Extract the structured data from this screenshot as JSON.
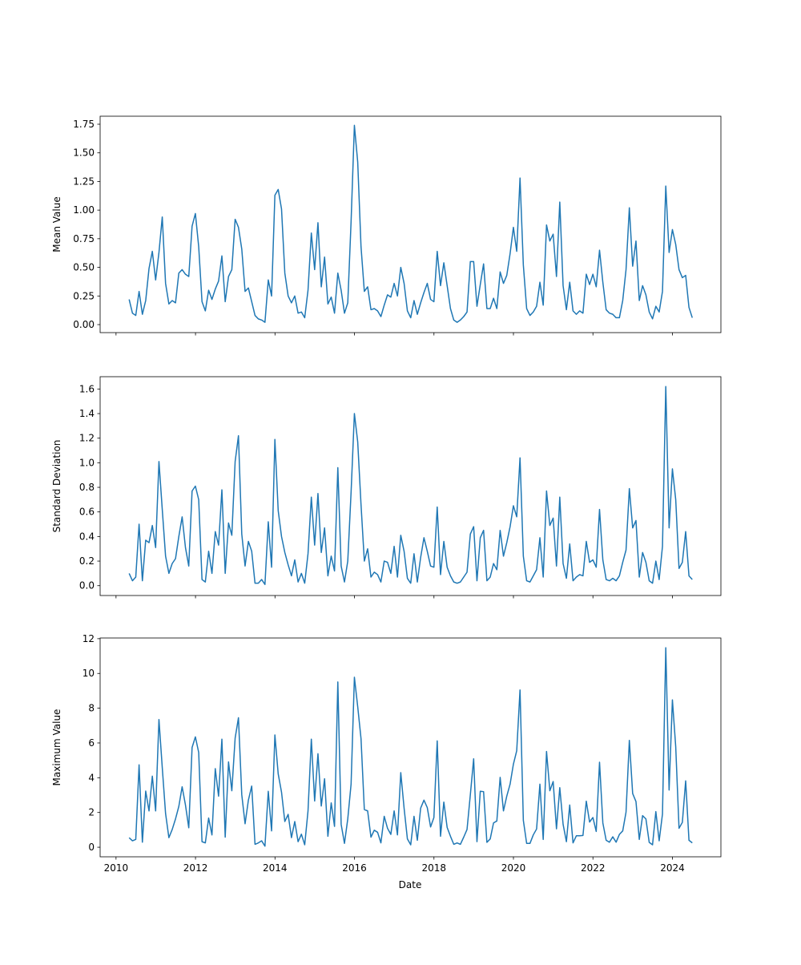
{
  "chart_data": {
    "type": "line",
    "xlabel": "Date",
    "x_start": 2010.33,
    "x_end": 2024.5,
    "x_frequency": "monthly",
    "xlim": [
      2009.6,
      2025.22
    ],
    "xticks": [
      2010,
      2012,
      2014,
      2016,
      2018,
      2020,
      2022,
      2024
    ],
    "xtick_labels": [
      "2010",
      "2012",
      "2014",
      "2016",
      "2018",
      "2020",
      "2022",
      "2024"
    ],
    "line_color": "#1f77b4",
    "grid": false,
    "panels": [
      {
        "ylabel": "Mean Value",
        "ylim": [
          -0.07,
          1.82
        ],
        "yticks": [
          0,
          0.25,
          0.5,
          0.75,
          1.0,
          1.25,
          1.5,
          1.75
        ],
        "ytick_labels": [
          "0.00",
          "0.25",
          "0.50",
          "0.75",
          "1.00",
          "1.25",
          "1.50",
          "1.75"
        ],
        "values": [
          0.22,
          0.1,
          0.08,
          0.29,
          0.09,
          0.21,
          0.49,
          0.64,
          0.39,
          0.63,
          0.94,
          0.36,
          0.18,
          0.21,
          0.19,
          0.45,
          0.48,
          0.44,
          0.42,
          0.86,
          0.97,
          0.68,
          0.2,
          0.12,
          0.3,
          0.22,
          0.31,
          0.38,
          0.6,
          0.2,
          0.42,
          0.48,
          0.92,
          0.85,
          0.66,
          0.29,
          0.32,
          0.2,
          0.08,
          0.05,
          0.04,
          0.02,
          0.39,
          0.25,
          1.13,
          1.18,
          1.01,
          0.45,
          0.25,
          0.19,
          0.25,
          0.1,
          0.11,
          0.06,
          0.3,
          0.8,
          0.48,
          0.89,
          0.33,
          0.59,
          0.18,
          0.24,
          0.1,
          0.45,
          0.3,
          0.1,
          0.19,
          0.9,
          1.74,
          1.42,
          0.68,
          0.29,
          0.33,
          0.13,
          0.14,
          0.12,
          0.07,
          0.17,
          0.26,
          0.24,
          0.36,
          0.25,
          0.5,
          0.36,
          0.12,
          0.06,
          0.21,
          0.09,
          0.19,
          0.28,
          0.36,
          0.22,
          0.2,
          0.64,
          0.34,
          0.54,
          0.34,
          0.14,
          0.04,
          0.02,
          0.04,
          0.07,
          0.11,
          0.55,
          0.55,
          0.16,
          0.35,
          0.53,
          0.14,
          0.14,
          0.23,
          0.14,
          0.46,
          0.36,
          0.43,
          0.62,
          0.85,
          0.64,
          1.28,
          0.52,
          0.14,
          0.08,
          0.11,
          0.16,
          0.37,
          0.17,
          0.87,
          0.73,
          0.79,
          0.42,
          1.07,
          0.34,
          0.13,
          0.37,
          0.12,
          0.09,
          0.12,
          0.1,
          0.44,
          0.35,
          0.44,
          0.33,
          0.65,
          0.37,
          0.13,
          0.1,
          0.09,
          0.06,
          0.06,
          0.21,
          0.48,
          1.02,
          0.51,
          0.73,
          0.21,
          0.34,
          0.26,
          0.11,
          0.05,
          0.16,
          0.11,
          0.29,
          1.21,
          0.63,
          0.83,
          0.7,
          0.48,
          0.41,
          0.43,
          0.15,
          0.06
        ]
      },
      {
        "ylabel": "Standard Deviation",
        "ylim": [
          -0.08,
          1.7
        ],
        "yticks": [
          0,
          0.2,
          0.4,
          0.6,
          0.8,
          1.0,
          1.2,
          1.4,
          1.6
        ],
        "ytick_labels": [
          "0.0",
          "0.2",
          "0.4",
          "0.6",
          "0.8",
          "1.0",
          "1.2",
          "1.4",
          "1.6"
        ],
        "values": [
          0.1,
          0.04,
          0.07,
          0.5,
          0.04,
          0.37,
          0.35,
          0.49,
          0.31,
          1.01,
          0.62,
          0.24,
          0.1,
          0.18,
          0.22,
          0.4,
          0.56,
          0.31,
          0.16,
          0.77,
          0.81,
          0.7,
          0.05,
          0.03,
          0.28,
          0.1,
          0.44,
          0.33,
          0.78,
          0.1,
          0.51,
          0.41,
          1.01,
          1.22,
          0.42,
          0.16,
          0.36,
          0.28,
          0.02,
          0.02,
          0.05,
          0.01,
          0.52,
          0.15,
          1.19,
          0.61,
          0.4,
          0.27,
          0.17,
          0.08,
          0.21,
          0.03,
          0.1,
          0.02,
          0.26,
          0.72,
          0.33,
          0.75,
          0.27,
          0.47,
          0.08,
          0.24,
          0.12,
          0.96,
          0.16,
          0.03,
          0.2,
          0.76,
          1.4,
          1.17,
          0.66,
          0.2,
          0.3,
          0.07,
          0.11,
          0.09,
          0.03,
          0.2,
          0.19,
          0.1,
          0.32,
          0.07,
          0.41,
          0.28,
          0.06,
          0.02,
          0.26,
          0.03,
          0.23,
          0.39,
          0.28,
          0.16,
          0.15,
          0.64,
          0.09,
          0.36,
          0.15,
          0.08,
          0.03,
          0.02,
          0.03,
          0.07,
          0.11,
          0.42,
          0.48,
          0.04,
          0.39,
          0.45,
          0.04,
          0.07,
          0.18,
          0.13,
          0.45,
          0.24,
          0.35,
          0.48,
          0.65,
          0.56,
          1.04,
          0.24,
          0.04,
          0.03,
          0.08,
          0.13,
          0.39,
          0.07,
          0.77,
          0.49,
          0.55,
          0.16,
          0.72,
          0.18,
          0.06,
          0.34,
          0.04,
          0.07,
          0.09,
          0.08,
          0.36,
          0.19,
          0.21,
          0.15,
          0.62,
          0.21,
          0.05,
          0.04,
          0.06,
          0.04,
          0.08,
          0.19,
          0.29,
          0.79,
          0.47,
          0.53,
          0.07,
          0.27,
          0.19,
          0.04,
          0.02,
          0.2,
          0.05,
          0.32,
          1.62,
          0.47,
          0.95,
          0.7,
          0.14,
          0.19,
          0.44,
          0.08,
          0.05
        ]
      },
      {
        "ylabel": "Maximum Value",
        "ylim": [
          -0.55,
          12.04
        ],
        "yticks": [
          0,
          2,
          4,
          6,
          8,
          10,
          12
        ],
        "ytick_labels": [
          "0",
          "2",
          "4",
          "6",
          "8",
          "10",
          "12"
        ],
        "values": [
          0.55,
          0.37,
          0.45,
          4.74,
          0.29,
          3.23,
          2.09,
          4.09,
          2.09,
          7.35,
          4.58,
          1.94,
          0.55,
          1.02,
          1.63,
          2.35,
          3.48,
          2.43,
          1.12,
          5.74,
          6.35,
          5.45,
          0.32,
          0.25,
          1.68,
          0.71,
          4.52,
          2.94,
          6.22,
          0.58,
          4.91,
          3.25,
          6.28,
          7.45,
          3.02,
          1.35,
          2.71,
          3.52,
          0.17,
          0.25,
          0.37,
          0.06,
          3.22,
          0.94,
          6.46,
          4.22,
          3.17,
          1.48,
          1.89,
          0.55,
          1.48,
          0.32,
          0.75,
          0.14,
          2.09,
          6.22,
          2.66,
          5.38,
          2.37,
          3.94,
          0.63,
          2.55,
          1.2,
          9.51,
          1.32,
          0.22,
          1.63,
          3.63,
          9.78,
          8.09,
          6.25,
          2.17,
          2.09,
          0.58,
          0.98,
          0.86,
          0.25,
          1.78,
          1.09,
          0.74,
          2.09,
          0.71,
          4.29,
          2.25,
          0.48,
          0.14,
          1.78,
          0.4,
          2.25,
          2.71,
          2.28,
          1.17,
          1.71,
          6.12,
          0.63,
          2.6,
          1.14,
          0.63,
          0.17,
          0.25,
          0.17,
          0.58,
          1.02,
          3.02,
          5.09,
          0.32,
          3.22,
          3.2,
          0.28,
          0.48,
          1.4,
          1.51,
          4.02,
          2.09,
          2.94,
          3.63,
          4.78,
          5.55,
          9.05,
          1.55,
          0.22,
          0.22,
          0.71,
          1.05,
          3.63,
          0.45,
          5.51,
          3.25,
          3.78,
          1.06,
          3.43,
          1.32,
          0.32,
          2.43,
          0.25,
          0.66,
          0.66,
          0.68,
          2.65,
          1.45,
          1.71,
          0.91,
          4.89,
          1.4,
          0.4,
          0.29,
          0.6,
          0.29,
          0.74,
          0.94,
          2.02,
          6.15,
          3.09,
          2.63,
          0.45,
          1.82,
          1.63,
          0.28,
          0.14,
          2.05,
          0.37,
          1.91,
          11.48,
          3.29,
          8.48,
          5.78,
          1.09,
          1.43,
          3.82,
          0.4,
          0.25
        ]
      }
    ]
  }
}
